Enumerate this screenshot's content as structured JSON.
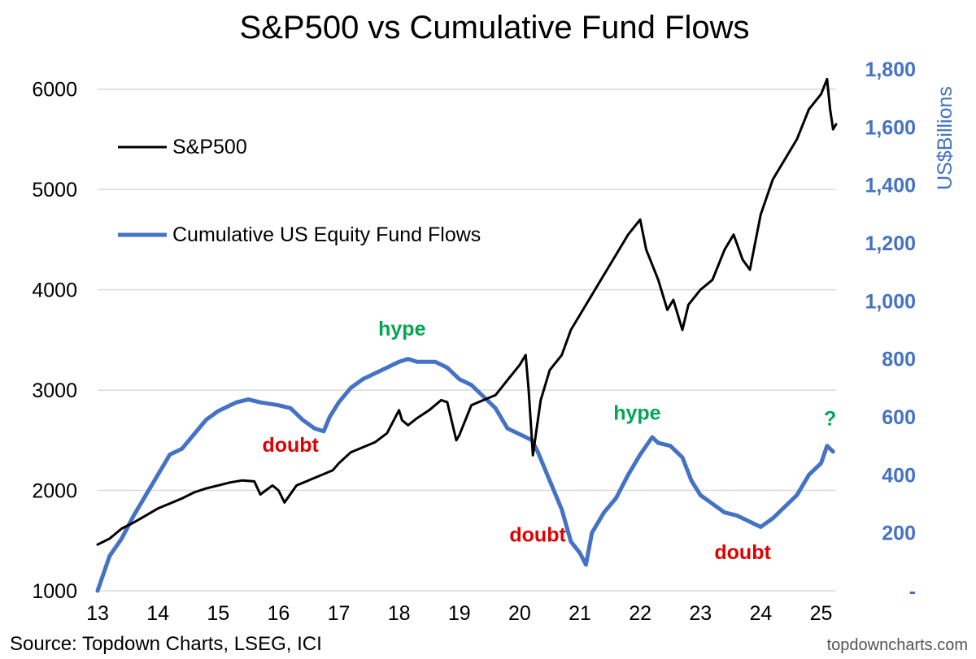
{
  "colors": {
    "sp500": "#000000",
    "flows": "#4472C4",
    "right_axis": "#4472C4",
    "hype": "#00A651",
    "doubt": "#E00000",
    "grid": "#D9D9D9"
  },
  "footer": {
    "source": "Source: Topdown Charts, LSEG, ICI",
    "site": "topdowncharts.com"
  },
  "chart_data": {
    "type": "line",
    "title": "S&P500 vs Cumulative Fund Flows",
    "xlabel": "",
    "ylabel_left": "",
    "ylabel_right": "US$Billions",
    "x_range": [
      2013.0,
      2025.25
    ],
    "x_ticks": [
      {
        "value": 2013,
        "label": "13"
      },
      {
        "value": 2014,
        "label": "14"
      },
      {
        "value": 2015,
        "label": "15"
      },
      {
        "value": 2016,
        "label": "16"
      },
      {
        "value": 2017,
        "label": "17"
      },
      {
        "value": 2018,
        "label": "18"
      },
      {
        "value": 2019,
        "label": "19"
      },
      {
        "value": 2020,
        "label": "20"
      },
      {
        "value": 2021,
        "label": "21"
      },
      {
        "value": 2022,
        "label": "22"
      },
      {
        "value": 2023,
        "label": "23"
      },
      {
        "value": 2024,
        "label": "24"
      },
      {
        "value": 2025,
        "label": "25"
      }
    ],
    "ylim_left": [
      1000,
      6200
    ],
    "y_ticks_left": [
      {
        "value": 1000,
        "label": "1000"
      },
      {
        "value": 2000,
        "label": "2000"
      },
      {
        "value": 3000,
        "label": "3000"
      },
      {
        "value": 4000,
        "label": "4000"
      },
      {
        "value": 5000,
        "label": "5000"
      },
      {
        "value": 6000,
        "label": "6000"
      }
    ],
    "ylim_right": [
      0,
      1800
    ],
    "y_ticks_right": [
      {
        "value": 0,
        "label": "-"
      },
      {
        "value": 200,
        "label": "200"
      },
      {
        "value": 400,
        "label": "400"
      },
      {
        "value": 600,
        "label": "600"
      },
      {
        "value": 800,
        "label": "800"
      },
      {
        "value": 1000,
        "label": "1,000"
      },
      {
        "value": 1200,
        "label": "1,200"
      },
      {
        "value": 1400,
        "label": "1,400"
      },
      {
        "value": 1600,
        "label": "1,600"
      },
      {
        "value": 1800,
        "label": "1,800"
      }
    ],
    "grid": "horizontal",
    "legend": [
      {
        "name": "S&P500",
        "color": "#000000",
        "position": "upper-left"
      },
      {
        "name": "Cumulative US Equity Fund Flows",
        "color": "#4472C4",
        "position": "upper-left"
      }
    ],
    "series": [
      {
        "name": "S&P500",
        "axis": "left",
        "color": "#000000",
        "x": [
          2013.0,
          2013.2,
          2013.4,
          2013.6,
          2013.8,
          2014.0,
          2014.2,
          2014.4,
          2014.6,
          2014.8,
          2015.0,
          2015.2,
          2015.4,
          2015.6,
          2015.7,
          2015.9,
          2016.0,
          2016.1,
          2016.3,
          2016.5,
          2016.7,
          2016.9,
          2017.0,
          2017.2,
          2017.4,
          2017.6,
          2017.8,
          2018.0,
          2018.05,
          2018.15,
          2018.3,
          2018.5,
          2018.7,
          2018.8,
          2018.95,
          2019.0,
          2019.2,
          2019.4,
          2019.6,
          2019.8,
          2020.0,
          2020.1,
          2020.15,
          2020.22,
          2020.35,
          2020.5,
          2020.7,
          2020.85,
          2021.0,
          2021.2,
          2021.4,
          2021.6,
          2021.8,
          2022.0,
          2022.1,
          2022.3,
          2022.45,
          2022.55,
          2022.7,
          2022.8,
          2023.0,
          2023.2,
          2023.4,
          2023.55,
          2023.7,
          2023.82,
          2024.0,
          2024.2,
          2024.4,
          2024.6,
          2024.8,
          2025.0,
          2025.1,
          2025.15,
          2025.2,
          2025.25
        ],
        "values": [
          1460,
          1520,
          1620,
          1680,
          1750,
          1820,
          1870,
          1920,
          1980,
          2020,
          2050,
          2080,
          2100,
          2090,
          1960,
          2050,
          2000,
          1880,
          2050,
          2100,
          2150,
          2200,
          2270,
          2380,
          2430,
          2480,
          2570,
          2800,
          2700,
          2650,
          2720,
          2800,
          2900,
          2880,
          2500,
          2550,
          2850,
          2900,
          2950,
          3100,
          3250,
          3350,
          3000,
          2350,
          2900,
          3200,
          3350,
          3600,
          3750,
          3950,
          4150,
          4350,
          4550,
          4700,
          4400,
          4100,
          3800,
          3900,
          3600,
          3850,
          4000,
          4100,
          4400,
          4550,
          4300,
          4200,
          4750,
          5100,
          5300,
          5500,
          5800,
          5950,
          6100,
          5800,
          5600,
          5650
        ]
      },
      {
        "name": "Cumulative US Equity Fund Flows",
        "axis": "right",
        "color": "#4472C4",
        "x": [
          2013.0,
          2013.2,
          2013.4,
          2013.6,
          2013.8,
          2014.0,
          2014.2,
          2014.4,
          2014.6,
          2014.8,
          2015.0,
          2015.3,
          2015.5,
          2015.7,
          2016.0,
          2016.2,
          2016.4,
          2016.6,
          2016.75,
          2016.85,
          2017.0,
          2017.2,
          2017.4,
          2017.6,
          2017.8,
          2018.0,
          2018.15,
          2018.3,
          2018.6,
          2018.8,
          2019.0,
          2019.2,
          2019.4,
          2019.6,
          2019.8,
          2020.0,
          2020.2,
          2020.3,
          2020.5,
          2020.7,
          2020.85,
          2021.0,
          2021.1,
          2021.2,
          2021.4,
          2021.6,
          2021.8,
          2022.0,
          2022.2,
          2022.3,
          2022.5,
          2022.7,
          2022.85,
          2023.0,
          2023.2,
          2023.4,
          2023.6,
          2023.8,
          2024.0,
          2024.2,
          2024.4,
          2024.6,
          2024.8,
          2025.0,
          2025.1,
          2025.2
        ],
        "values": [
          0,
          120,
          180,
          260,
          330,
          400,
          470,
          490,
          540,
          590,
          620,
          650,
          660,
          650,
          640,
          630,
          590,
          560,
          550,
          600,
          650,
          700,
          730,
          750,
          770,
          790,
          800,
          790,
          790,
          770,
          730,
          710,
          670,
          630,
          560,
          540,
          520,
          480,
          380,
          280,
          170,
          130,
          90,
          200,
          270,
          320,
          400,
          470,
          530,
          510,
          500,
          460,
          380,
          330,
          300,
          270,
          260,
          240,
          220,
          250,
          290,
          330,
          400,
          440,
          500,
          480
        ]
      }
    ],
    "annotations": [
      {
        "text": "hype",
        "x": 2018.05,
        "y_right": 880,
        "color": "#00A651"
      },
      {
        "text": "doubt",
        "x": 2016.2,
        "y_right": 480,
        "color": "#E00000"
      },
      {
        "text": "doubt",
        "x": 2020.3,
        "y_right": 170,
        "color": "#E00000"
      },
      {
        "text": "hype",
        "x": 2021.95,
        "y_right": 590,
        "color": "#00A651"
      },
      {
        "text": "doubt",
        "x": 2023.7,
        "y_right": 110,
        "color": "#E00000"
      },
      {
        "text": "?",
        "x": 2025.15,
        "y_right": 570,
        "color": "#00A651"
      }
    ]
  }
}
